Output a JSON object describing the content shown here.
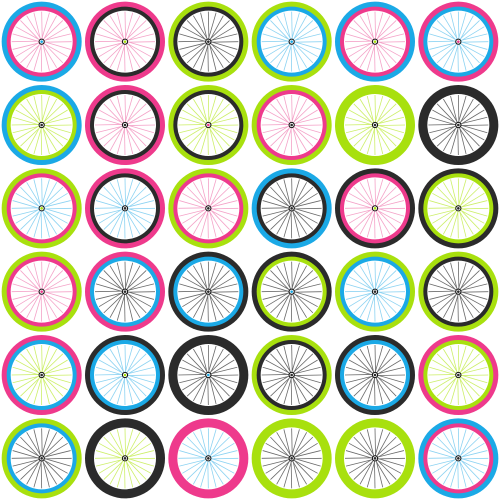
{
  "palette": {
    "pink": "#ee3a8c",
    "black": "#2b2b2b",
    "green": "#a8e00e",
    "blue": "#1ba9e6",
    "lightpink": "#f4a3c8",
    "lightblue": "#8dd3f2",
    "lightgreen": "#cdef6a",
    "gray": "#6a6a6a",
    "hub": "#111111",
    "background": "#ffffff"
  },
  "grid": {
    "columns": 6,
    "rows": 6
  },
  "wheels": [
    {
      "outer": "blue",
      "inner": "pink",
      "spokes": "lightpink",
      "hub_dot": "blue"
    },
    {
      "outer": "pink",
      "inner": "black",
      "spokes": "lightpink",
      "hub_dot": "green"
    },
    {
      "outer": "green",
      "inner": "black",
      "spokes": "gray",
      "hub_dot": "black"
    },
    {
      "outer": "green",
      "inner": "blue",
      "spokes": "lightblue",
      "hub_dot": "blue"
    },
    {
      "outer": "blue",
      "inner": "pink",
      "spokes": "lightpink",
      "hub_dot": "green"
    },
    {
      "outer": "pink",
      "inner": "blue",
      "spokes": "lightblue",
      "hub_dot": "pink"
    },
    {
      "outer": "blue",
      "inner": "green",
      "spokes": "lightgreen",
      "hub_dot": "black"
    },
    {
      "outer": "pink",
      "inner": "black",
      "spokes": "lightpink",
      "hub_dot": "black"
    },
    {
      "outer": "green",
      "inner": "black",
      "spokes": "lightgreen",
      "hub_dot": "pink"
    },
    {
      "outer": "green",
      "inner": "pink",
      "spokes": "lightpink",
      "hub_dot": "black"
    },
    {
      "outer": "green",
      "inner": "green",
      "spokes": "lightgreen",
      "hub_dot": "black"
    },
    {
      "outer": "black",
      "inner": "black",
      "spokes": "gray",
      "hub_dot": "black"
    },
    {
      "outer": "green",
      "inner": "pink",
      "spokes": "lightblue",
      "hub_dot": "green"
    },
    {
      "outer": "pink",
      "inner": "black",
      "spokes": "lightblue",
      "hub_dot": "black"
    },
    {
      "outer": "green",
      "inner": "pink",
      "spokes": "lightpink",
      "hub_dot": "black"
    },
    {
      "outer": "blue",
      "inner": "black",
      "spokes": "gray",
      "hub_dot": "black"
    },
    {
      "outer": "black",
      "inner": "pink",
      "spokes": "lightpink",
      "hub_dot": "green"
    },
    {
      "outer": "black",
      "inner": "green",
      "spokes": "lightgreen",
      "hub_dot": "black"
    },
    {
      "outer": "green",
      "inner": "pink",
      "spokes": "lightpink",
      "hub_dot": "pink"
    },
    {
      "outer": "pink",
      "inner": "blue",
      "spokes": "gray",
      "hub_dot": "black"
    },
    {
      "outer": "black",
      "inner": "blue",
      "spokes": "gray",
      "hub_dot": "black"
    },
    {
      "outer": "black",
      "inner": "green",
      "spokes": "gray",
      "hub_dot": "blue"
    },
    {
      "outer": "green",
      "inner": "blue",
      "spokes": "lightblue",
      "hub_dot": "black"
    },
    {
      "outer": "green",
      "inner": "black",
      "spokes": "gray",
      "hub_dot": "black"
    },
    {
      "outer": "pink",
      "inner": "blue",
      "spokes": "lightgreen",
      "hub_dot": "black"
    },
    {
      "outer": "black",
      "inner": "blue",
      "spokes": "lightblue",
      "hub_dot": "green"
    },
    {
      "outer": "black",
      "inner": "black",
      "spokes": "gray",
      "hub_dot": "blue"
    },
    {
      "outer": "green",
      "inner": "black",
      "spokes": "gray",
      "hub_dot": "black"
    },
    {
      "outer": "black",
      "inner": "blue",
      "spokes": "gray",
      "hub_dot": "black"
    },
    {
      "outer": "pink",
      "inner": "green",
      "spokes": "lightgreen",
      "hub_dot": "black"
    },
    {
      "outer": "green",
      "inner": "blue",
      "spokes": "gray",
      "hub_dot": "black"
    },
    {
      "outer": "black",
      "inner": "black",
      "spokes": "lightgreen",
      "hub_dot": "black"
    },
    {
      "outer": "pink",
      "inner": "pink",
      "spokes": "lightblue",
      "hub_dot": "black"
    },
    {
      "outer": "green",
      "inner": "green",
      "spokes": "gray",
      "hub_dot": "black"
    },
    {
      "outer": "green",
      "inner": "green",
      "spokes": "gray",
      "hub_dot": "black"
    },
    {
      "outer": "blue",
      "inner": "pink",
      "spokes": "lightblue",
      "hub_dot": "black"
    }
  ]
}
